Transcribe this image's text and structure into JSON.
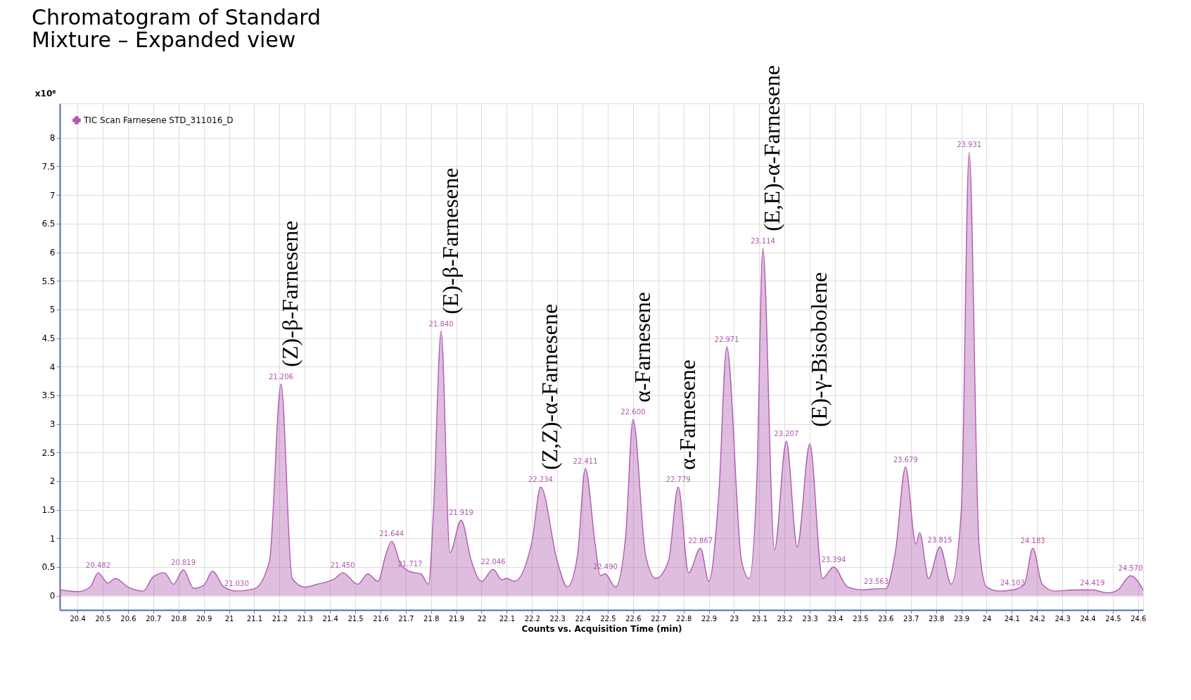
{
  "chart_data": {
    "type": "area",
    "title": "Chromatogram of Standard\nMixture – Expanded view",
    "xlabel": "Counts vs. Acquisition Time (min)",
    "ylabel": "x10⁶",
    "legend": "top left",
    "grid": true,
    "xlim": [
      20.33,
      24.62
    ],
    "ylim": [
      -0.25,
      8.6
    ],
    "xticks": [
      20.4,
      20.5,
      20.6,
      20.7,
      20.8,
      20.9,
      21,
      21.1,
      21.2,
      21.3,
      21.4,
      21.5,
      21.6,
      21.7,
      21.8,
      21.9,
      22,
      22.1,
      22.2,
      22.3,
      22.4,
      22.5,
      22.6,
      22.7,
      22.8,
      22.9,
      23,
      23.1,
      23.2,
      23.3,
      23.4,
      23.5,
      23.6,
      23.7,
      23.8,
      23.9,
      24,
      24.1,
      24.2,
      24.3,
      24.4,
      24.5,
      24.6
    ],
    "yticks": [
      0,
      0.5,
      1,
      1.5,
      2,
      2.5,
      3,
      3.5,
      4,
      4.5,
      5,
      5.5,
      6,
      6.5,
      7,
      7.5,
      8
    ],
    "series": [
      {
        "name": "TIC Scan Farnesene STD_311016_D",
        "color": "#b05ab0",
        "x": [
          20.33,
          20.4,
          20.45,
          20.482,
          20.52,
          20.55,
          20.6,
          20.66,
          20.7,
          20.745,
          20.78,
          20.819,
          20.86,
          20.9,
          20.935,
          20.98,
          21.03,
          21.1,
          21.16,
          21.206,
          21.25,
          21.3,
          21.35,
          21.42,
          21.45,
          21.51,
          21.55,
          21.59,
          21.62,
          21.644,
          21.68,
          21.717,
          21.76,
          21.79,
          21.81,
          21.84,
          21.875,
          21.919,
          21.96,
          22.0,
          22.046,
          22.08,
          22.1,
          22.13,
          22.2,
          22.234,
          22.3,
          22.34,
          22.38,
          22.411,
          22.45,
          22.47,
          22.49,
          22.53,
          22.57,
          22.6,
          22.65,
          22.69,
          22.74,
          22.779,
          22.82,
          22.867,
          22.9,
          22.94,
          22.971,
          23.03,
          23.06,
          23.09,
          23.114,
          23.16,
          23.207,
          23.25,
          23.3,
          23.35,
          23.394,
          23.45,
          23.51,
          23.563,
          23.6,
          23.64,
          23.679,
          23.72,
          23.735,
          23.77,
          23.815,
          23.86,
          23.9,
          23.931,
          23.97,
          24.0,
          24.05,
          24.103,
          24.15,
          24.183,
          24.22,
          24.27,
          24.35,
          24.419,
          24.48,
          24.52,
          24.57,
          24.62
        ],
        "values": [
          0.1,
          0.07,
          0.15,
          0.4,
          0.22,
          0.3,
          0.15,
          0.08,
          0.33,
          0.4,
          0.2,
          0.45,
          0.13,
          0.18,
          0.43,
          0.15,
          0.08,
          0.12,
          0.6,
          3.7,
          0.3,
          0.15,
          0.2,
          0.3,
          0.4,
          0.2,
          0.38,
          0.25,
          0.7,
          0.95,
          0.55,
          0.42,
          0.38,
          0.2,
          1.5,
          4.62,
          0.75,
          1.32,
          0.6,
          0.25,
          0.46,
          0.28,
          0.3,
          0.25,
          0.95,
          1.9,
          0.6,
          0.15,
          0.7,
          2.22,
          0.9,
          0.35,
          0.38,
          0.15,
          1.0,
          3.08,
          0.7,
          0.3,
          0.6,
          1.9,
          0.4,
          0.83,
          0.25,
          1.8,
          4.35,
          0.6,
          0.3,
          2.0,
          6.07,
          0.8,
          2.7,
          0.85,
          2.65,
          0.3,
          0.5,
          0.15,
          0.1,
          0.12,
          0.12,
          0.8,
          2.25,
          0.9,
          1.1,
          0.3,
          0.85,
          0.2,
          1.5,
          7.75,
          0.9,
          0.15,
          0.08,
          0.1,
          0.2,
          0.83,
          0.2,
          0.08,
          0.1,
          0.1,
          0.05,
          0.1,
          0.35,
          0.1
        ]
      }
    ],
    "annotations": [
      {
        "text": "20.482",
        "x": 20.482,
        "y": 0.4
      },
      {
        "text": "20.819",
        "x": 20.819,
        "y": 0.45
      },
      {
        "text": "21.030",
        "x": 21.03,
        "y": 0.08
      },
      {
        "text": "21.206",
        "x": 21.206,
        "y": 3.7
      },
      {
        "text": "21.450",
        "x": 21.45,
        "y": 0.4
      },
      {
        "text": "21.644",
        "x": 21.644,
        "y": 0.95
      },
      {
        "text": "21.717",
        "x": 21.717,
        "y": 0.42
      },
      {
        "text": "21.840",
        "x": 21.84,
        "y": 4.62
      },
      {
        "text": "21.919",
        "x": 21.919,
        "y": 1.32
      },
      {
        "text": "22.046",
        "x": 22.046,
        "y": 0.46
      },
      {
        "text": "22.234",
        "x": 22.234,
        "y": 1.9
      },
      {
        "text": "22.411",
        "x": 22.411,
        "y": 2.22
      },
      {
        "text": "22.490",
        "x": 22.49,
        "y": 0.38
      },
      {
        "text": "22.600",
        "x": 22.6,
        "y": 3.08
      },
      {
        "text": "22.779",
        "x": 22.779,
        "y": 1.9
      },
      {
        "text": "22.867",
        "x": 22.867,
        "y": 0.83
      },
      {
        "text": "22.971",
        "x": 22.971,
        "y": 4.35
      },
      {
        "text": "23.114",
        "x": 23.114,
        "y": 6.07
      },
      {
        "text": "23.207",
        "x": 23.207,
        "y": 2.7
      },
      {
        "text": "23.394",
        "x": 23.394,
        "y": 0.5
      },
      {
        "text": "23.563",
        "x": 23.563,
        "y": 0.12
      },
      {
        "text": "23.679",
        "x": 23.679,
        "y": 2.25
      },
      {
        "text": "23.815",
        "x": 23.815,
        "y": 0.85
      },
      {
        "text": "23.931",
        "x": 23.931,
        "y": 7.75
      },
      {
        "text": "24.103",
        "x": 24.103,
        "y": 0.1
      },
      {
        "text": "24.183",
        "x": 24.183,
        "y": 0.83
      },
      {
        "text": "24.419",
        "x": 24.419,
        "y": 0.1
      },
      {
        "text": "24.570",
        "x": 24.57,
        "y": 0.35
      },
      "(Z)-β-Farnesene",
      "(E)-β-Farnesene",
      "(Z,Z)-α-Farnesene",
      "α-Farnesene",
      "α-Farnesene",
      "(E,E)-α-Farnesene",
      "(E)-γ-Bisobolene"
    ]
  }
}
